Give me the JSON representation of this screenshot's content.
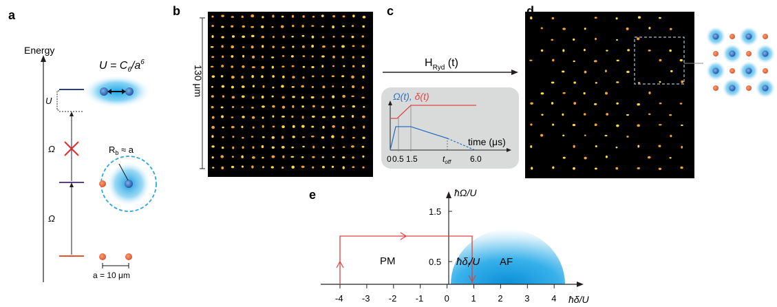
{
  "panels": {
    "a": {
      "letter": "a",
      "energy_label": "Energy",
      "u_formula": "U = C",
      "u_sub": "6",
      "u_over": "/a",
      "u_sup": "6",
      "u_label": "U",
      "omega_upper": "Ω",
      "omega_lower": "Ω",
      "rb_label": "R",
      "rb_sub": "b",
      "rb_rest": " ≈ a",
      "spacing_label": "a = 10 μm",
      "colors": {
        "ground_level": "#e8512a",
        "mid_level": "#5b3f82",
        "top_level": "#273c8a",
        "blockade_x": "#e02c2c",
        "atom_orange": "#e8663a",
        "atom_blue": "#2f78c4",
        "glow": "#35b5ea"
      }
    },
    "b": {
      "letter": "b",
      "scale_label": "130 μm",
      "grid": "16x16 atom array"
    },
    "c": {
      "letter": "c",
      "h_label": "H",
      "h_sub": "Ryd",
      "h_arg": " (t)",
      "omega_legend": "Ω(t),",
      "delta_legend": "δ(t)",
      "time_label": "time (μs)",
      "ticks": [
        "0",
        "0.5",
        "1.5",
        "t",
        "6.0"
      ],
      "toff_sub": "off",
      "colors": {
        "omega": "#2f6fc0",
        "delta": "#e04646",
        "box": "#d9dbdb"
      }
    },
    "d": {
      "letter": "d"
    },
    "e": {
      "letter": "e",
      "y_axis_label": "ħΩ/U",
      "x_axis_label": "ħδ/U",
      "pm_label": "PM",
      "af_label": "AF",
      "delta_f_label": "ħδ",
      "delta_f_sub": "f",
      "delta_f_rest": "/U",
      "x_ticks": [
        "-4",
        "-3",
        "-2",
        "-1",
        "0",
        "1",
        "2",
        "3",
        "4"
      ],
      "y_ticks": [
        "0.5",
        "1.5"
      ],
      "colors": {
        "path": "#e0403f",
        "af_region": "#1ba0e0"
      }
    }
  }
}
